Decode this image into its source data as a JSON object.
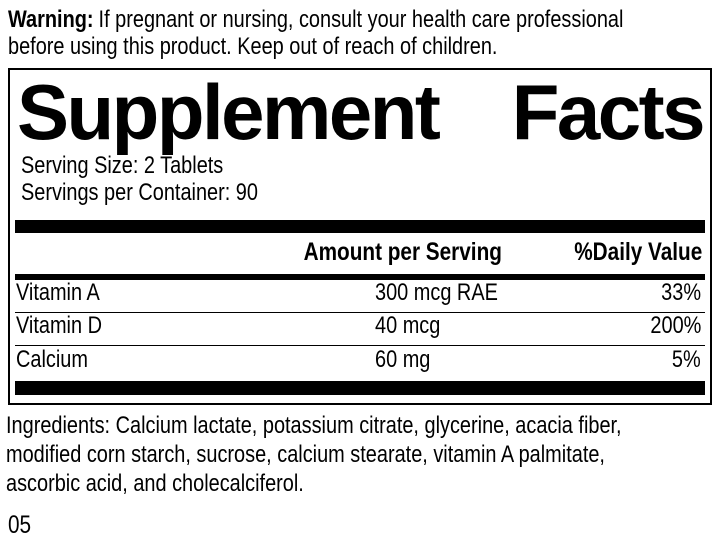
{
  "warning": {
    "label": "Warning:",
    "line1": "If pregnant or nursing, consult your health care professional",
    "line2": "before using this product. Keep out of reach of children."
  },
  "panel": {
    "title": {
      "word1": "Supplement",
      "word2": "Facts"
    },
    "serving_size": "Serving Size: 2 Tablets",
    "servings_per_container": "Servings per Container: 90",
    "header": {
      "amount": "Amount per Serving",
      "daily_value": "%Daily Value"
    },
    "rows": [
      {
        "name": "Vitamin A",
        "amount": "300 mcg RAE",
        "dv": "33%"
      },
      {
        "name": "Vitamin D",
        "amount": "40 mcg",
        "dv": "200%"
      },
      {
        "name": "Calcium",
        "amount": "60 mg",
        "dv": "5%"
      }
    ]
  },
  "ingredients": {
    "line1": "Ingredients: Calcium lactate, potassium citrate, glycerine, acacia fiber,",
    "line2": "modified corn starch, sucrose, calcium stearate, vitamin A palmitate,",
    "line3": "ascorbic acid, and cholecalciferol."
  },
  "footer_code": "05",
  "colors": {
    "text": "#000000",
    "background": "#ffffff",
    "rule": "#000000"
  }
}
